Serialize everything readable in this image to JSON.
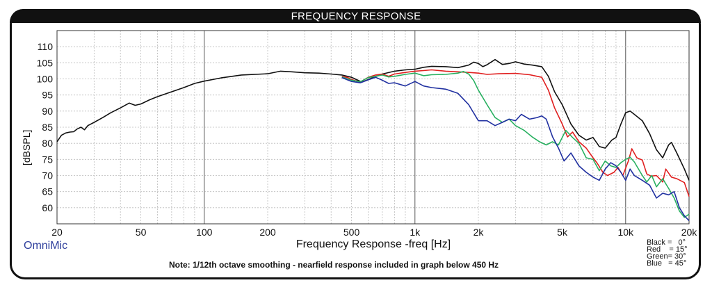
{
  "chart_data": {
    "type": "line",
    "title": "FREQUENCY RESPONSE",
    "xlabel": "Frequency Response -freq [Hz]",
    "ylabel": "[dBSPL]",
    "xscale": "log",
    "xlim": [
      20,
      20000
    ],
    "ylim": [
      55,
      115
    ],
    "grid": true,
    "yticks": [
      60,
      65,
      70,
      75,
      80,
      85,
      90,
      95,
      100,
      105,
      110
    ],
    "xticks": [
      {
        "value": 20,
        "label": "20"
      },
      {
        "value": 50,
        "label": "50"
      },
      {
        "value": 100,
        "label": "100"
      },
      {
        "value": 200,
        "label": "200"
      },
      {
        "value": 500,
        "label": "500"
      },
      {
        "value": 1000,
        "label": "1k"
      },
      {
        "value": 2000,
        "label": "2k"
      },
      {
        "value": 5000,
        "label": "5k"
      },
      {
        "value": 10000,
        "label": "10k"
      },
      {
        "value": 20000,
        "label": "20k"
      }
    ],
    "series": [
      {
        "name": "Black",
        "color": "#111111",
        "points": [
          [
            20,
            80.5
          ],
          [
            21,
            82.5
          ],
          [
            22,
            83.2
          ],
          [
            23,
            83.5
          ],
          [
            24,
            83.6
          ],
          [
            25,
            84.5
          ],
          [
            26,
            85
          ],
          [
            27,
            84.2
          ],
          [
            28,
            85.5
          ],
          [
            30,
            86.5
          ],
          [
            33,
            88
          ],
          [
            36,
            89.5
          ],
          [
            40,
            91
          ],
          [
            44,
            92.5
          ],
          [
            47,
            91.8
          ],
          [
            50,
            92.2
          ],
          [
            55,
            93.5
          ],
          [
            60,
            94.5
          ],
          [
            70,
            96
          ],
          [
            80,
            97.3
          ],
          [
            90,
            98.6
          ],
          [
            100,
            99.3
          ],
          [
            120,
            100.3
          ],
          [
            150,
            101.2
          ],
          [
            200,
            101.6
          ],
          [
            230,
            102.4
          ],
          [
            260,
            102.2
          ],
          [
            300,
            101.9
          ],
          [
            350,
            101.8
          ],
          [
            400,
            101.5
          ],
          [
            450,
            101.2
          ],
          [
            500,
            100.5
          ],
          [
            560,
            99
          ],
          [
            620,
            100.2
          ],
          [
            700,
            101.5
          ],
          [
            800,
            102.4
          ],
          [
            900,
            102.8
          ],
          [
            1000,
            103
          ],
          [
            1100,
            103.6
          ],
          [
            1200,
            103.9
          ],
          [
            1400,
            103.8
          ],
          [
            1600,
            103.5
          ],
          [
            1800,
            104.3
          ],
          [
            1900,
            105.2
          ],
          [
            2000,
            104.8
          ],
          [
            2100,
            103.8
          ],
          [
            2200,
            104.4
          ],
          [
            2400,
            106
          ],
          [
            2600,
            104.5
          ],
          [
            2800,
            104.8
          ],
          [
            3000,
            105.3
          ],
          [
            3300,
            104.6
          ],
          [
            3600,
            104.3
          ],
          [
            4000,
            103.8
          ],
          [
            4300,
            100.8
          ],
          [
            4600,
            96
          ],
          [
            5000,
            92
          ],
          [
            5500,
            86
          ],
          [
            6000,
            82.5
          ],
          [
            6500,
            81
          ],
          [
            7000,
            81.8
          ],
          [
            7500,
            79
          ],
          [
            8000,
            78.5
          ],
          [
            8600,
            81
          ],
          [
            9000,
            81.8
          ],
          [
            9500,
            86
          ],
          [
            10000,
            89.5
          ],
          [
            10500,
            90
          ],
          [
            11000,
            89
          ],
          [
            12000,
            87
          ],
          [
            13000,
            83
          ],
          [
            14000,
            78
          ],
          [
            15000,
            75.5
          ],
          [
            16000,
            79.5
          ],
          [
            16500,
            80.3
          ],
          [
            17500,
            77
          ],
          [
            19000,
            72
          ],
          [
            20000,
            68.5
          ]
        ]
      },
      {
        "name": "Red",
        "color": "#e02020",
        "points": [
          [
            450,
            100.8
          ],
          [
            480,
            100.4
          ],
          [
            500,
            99.8
          ],
          [
            550,
            99
          ],
          [
            600,
            100.5
          ],
          [
            650,
            101.2
          ],
          [
            700,
            101.5
          ],
          [
            750,
            100.8
          ],
          [
            800,
            101.5
          ],
          [
            900,
            102
          ],
          [
            1000,
            102.4
          ],
          [
            1100,
            102.6
          ],
          [
            1200,
            102.8
          ],
          [
            1400,
            102.4
          ],
          [
            1600,
            102.2
          ],
          [
            1800,
            102
          ],
          [
            2000,
            101.8
          ],
          [
            2200,
            101.4
          ],
          [
            2500,
            101.6
          ],
          [
            3000,
            101.7
          ],
          [
            3500,
            101.3
          ],
          [
            4000,
            100.5
          ],
          [
            4300,
            96.5
          ],
          [
            4600,
            91
          ],
          [
            5000,
            86
          ],
          [
            5300,
            82
          ],
          [
            5600,
            83.5
          ],
          [
            6000,
            80.5
          ],
          [
            6500,
            78.5
          ],
          [
            7000,
            75.5
          ],
          [
            7300,
            74
          ],
          [
            7800,
            71
          ],
          [
            8200,
            70
          ],
          [
            8800,
            71
          ],
          [
            9200,
            72.5
          ],
          [
            9700,
            70
          ],
          [
            10300,
            74.5
          ],
          [
            10700,
            78.3
          ],
          [
            11300,
            75.5
          ],
          [
            12000,
            74.8
          ],
          [
            12600,
            70.5
          ],
          [
            13200,
            69.8
          ],
          [
            14000,
            70
          ],
          [
            15000,
            68
          ],
          [
            15500,
            72
          ],
          [
            16500,
            69.5
          ],
          [
            17500,
            69
          ],
          [
            19000,
            67.8
          ],
          [
            20000,
            63.5
          ]
        ]
      },
      {
        "name": "Green",
        "color": "#28b060",
        "points": [
          [
            450,
            100.6
          ],
          [
            500,
            99.6
          ],
          [
            550,
            99.1
          ],
          [
            600,
            100.4
          ],
          [
            650,
            100.8
          ],
          [
            700,
            101.2
          ],
          [
            750,
            100.6
          ],
          [
            800,
            100.8
          ],
          [
            900,
            101.4
          ],
          [
            1000,
            101.8
          ],
          [
            1100,
            101
          ],
          [
            1200,
            101.3
          ],
          [
            1400,
            101.4
          ],
          [
            1600,
            101.8
          ],
          [
            1700,
            102.3
          ],
          [
            1800,
            101.5
          ],
          [
            1900,
            99.5
          ],
          [
            2000,
            96.5
          ],
          [
            2200,
            92
          ],
          [
            2400,
            88
          ],
          [
            2600,
            86.5
          ],
          [
            2800,
            87.5
          ],
          [
            3000,
            85.5
          ],
          [
            3300,
            84
          ],
          [
            3600,
            82
          ],
          [
            3900,
            80.5
          ],
          [
            4200,
            79.5
          ],
          [
            4500,
            80.5
          ],
          [
            4800,
            79.5
          ],
          [
            5200,
            84
          ],
          [
            5600,
            81.8
          ],
          [
            6000,
            80
          ],
          [
            6500,
            75.5
          ],
          [
            7000,
            75
          ],
          [
            7500,
            71.5
          ],
          [
            8000,
            74.5
          ],
          [
            8500,
            73
          ],
          [
            9000,
            72.5
          ],
          [
            9500,
            74
          ],
          [
            10000,
            75
          ],
          [
            10500,
            75.7
          ],
          [
            11000,
            74.2
          ],
          [
            12000,
            70
          ],
          [
            12600,
            68
          ],
          [
            13300,
            70
          ],
          [
            14000,
            66.5
          ],
          [
            15000,
            69
          ],
          [
            16000,
            66
          ],
          [
            17000,
            63
          ],
          [
            18000,
            59
          ],
          [
            19000,
            57
          ],
          [
            20000,
            58
          ]
        ]
      },
      {
        "name": "Blue",
        "color": "#2030a0",
        "points": [
          [
            450,
            100.4
          ],
          [
            500,
            99.2
          ],
          [
            550,
            98.8
          ],
          [
            600,
            99.7
          ],
          [
            650,
            100.5
          ],
          [
            700,
            99.6
          ],
          [
            750,
            98.6
          ],
          [
            800,
            98.8
          ],
          [
            900,
            97.8
          ],
          [
            1000,
            99.2
          ],
          [
            1100,
            97.8
          ],
          [
            1200,
            97.3
          ],
          [
            1400,
            96.8
          ],
          [
            1600,
            95.5
          ],
          [
            1800,
            92
          ],
          [
            2000,
            87
          ],
          [
            2200,
            87
          ],
          [
            2400,
            85.5
          ],
          [
            2600,
            86.5
          ],
          [
            2800,
            87.5
          ],
          [
            3000,
            87
          ],
          [
            3200,
            89
          ],
          [
            3500,
            87.5
          ],
          [
            3800,
            88
          ],
          [
            4000,
            88.5
          ],
          [
            4200,
            87.5
          ],
          [
            4500,
            82
          ],
          [
            4800,
            78.5
          ],
          [
            5100,
            74.5
          ],
          [
            5500,
            77
          ],
          [
            6000,
            73
          ],
          [
            6500,
            71
          ],
          [
            7000,
            69.5
          ],
          [
            7500,
            68.5
          ],
          [
            8000,
            72
          ],
          [
            8500,
            74
          ],
          [
            9000,
            73
          ],
          [
            9500,
            71
          ],
          [
            10000,
            68.5
          ],
          [
            10500,
            72
          ],
          [
            11000,
            70
          ],
          [
            12000,
            68.5
          ],
          [
            13000,
            67
          ],
          [
            14000,
            63
          ],
          [
            15000,
            64.5
          ],
          [
            16000,
            64
          ],
          [
            17000,
            65
          ],
          [
            18000,
            60
          ],
          [
            19000,
            57.5
          ],
          [
            20000,
            56
          ]
        ]
      }
    ]
  },
  "brand": "OmniMic",
  "note": "Note: 1/12th octave smoothing - nearfield response included in graph below 450 Hz",
  "legend": [
    {
      "label": "Black =   0°"
    },
    {
      "label": "Red    = 15°"
    },
    {
      "label": "Green= 30°"
    },
    {
      "label": "Blue   = 45°"
    }
  ]
}
